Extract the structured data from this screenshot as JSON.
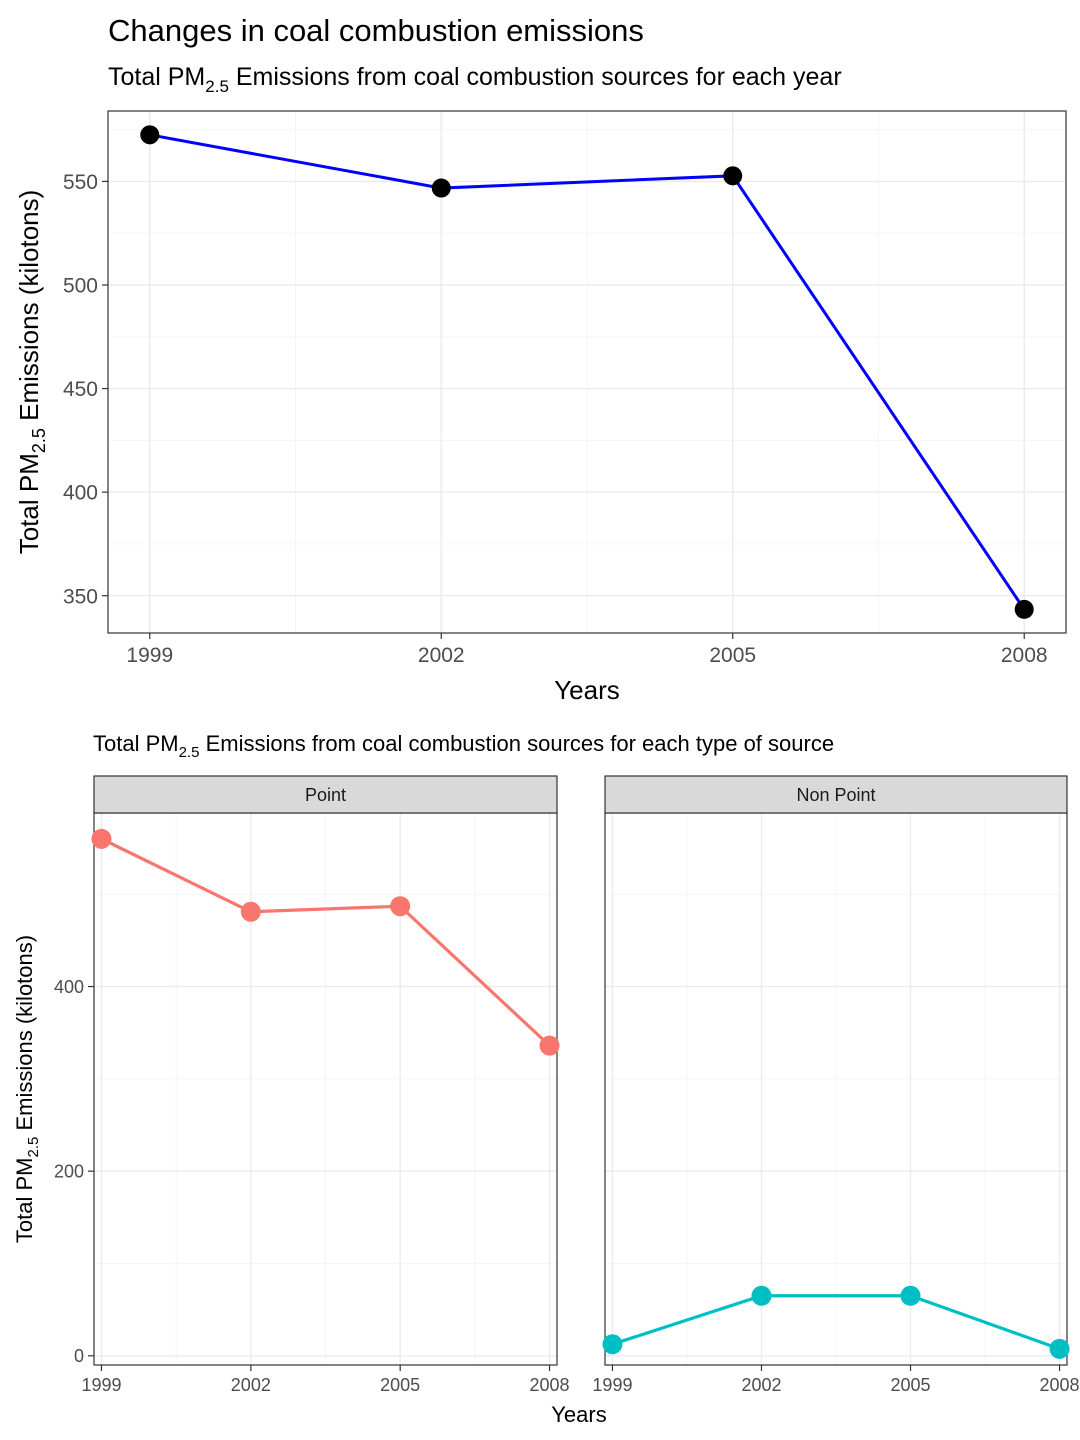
{
  "chart_data": [
    {
      "type": "line",
      "title": "Changes in coal combustion emissions",
      "subtitle_pre": "Total PM",
      "subtitle_sub": "2.5",
      "subtitle_post": " Emissions from coal combustion sources for each year",
      "xlabel": "Years",
      "ylabel_pre": "Total PM",
      "ylabel_sub": "2.5",
      "ylabel_post": " Emissions  (kilotons)",
      "x": [
        1999,
        2002,
        2005,
        2008
      ],
      "values": [
        572.5,
        546.8,
        552.7,
        343.4
      ],
      "xlim": [
        1998.57,
        2008.43
      ],
      "ylim": [
        332,
        584
      ],
      "xticks": [
        1999,
        2002,
        2005,
        2008
      ],
      "yticks": [
        350,
        400,
        450,
        500,
        550
      ],
      "line_color": "#0000ff",
      "point_color": "#000000",
      "grid": true
    },
    {
      "type": "line",
      "facet": true,
      "title_pre": "Total PM",
      "title_sub": "2.5",
      "title_post": " Emissions from coal combustion sources for each type of source",
      "xlabel": "Years",
      "ylabel_pre": "Total PM",
      "ylabel_sub": "2.5",
      "ylabel_post": " Emissions  (kilotons)",
      "x": [
        1999,
        2002,
        2005,
        2008
      ],
      "xlim": [
        1998.85,
        2008.15
      ],
      "ylim": [
        -10,
        588
      ],
      "xticks": [
        1999,
        2002,
        2005,
        2008
      ],
      "yticks": [
        0,
        200,
        400
      ],
      "grid": true,
      "panels": [
        {
          "strip": "Point",
          "color": "#f8766d",
          "values": [
            560,
            481,
            487,
            336
          ]
        },
        {
          "strip": "Non Point",
          "color": "#00bfc4",
          "values": [
            12.5,
            65,
            65,
            7.5
          ]
        }
      ]
    }
  ]
}
